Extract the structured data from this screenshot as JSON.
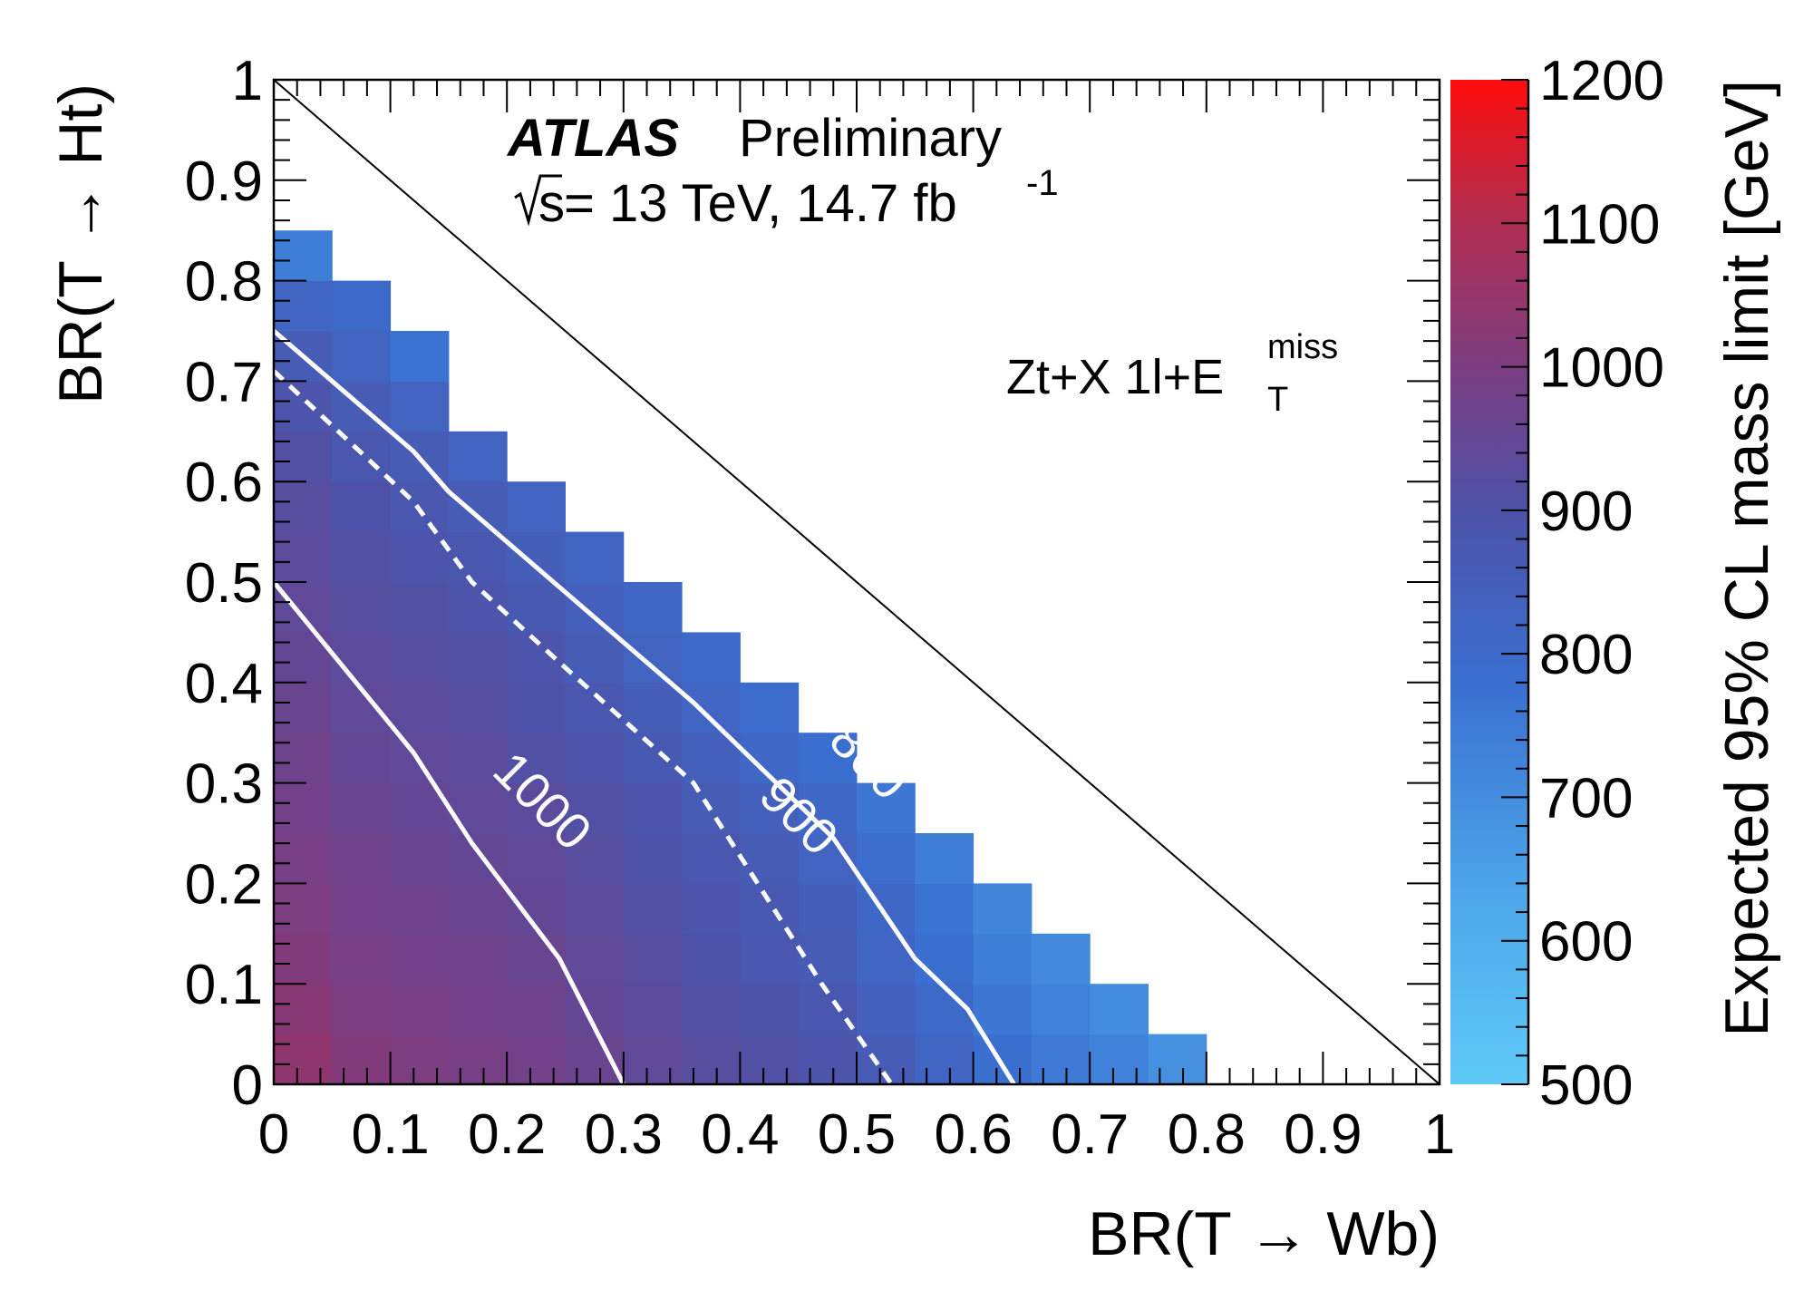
{
  "chart_data": {
    "type": "heatmap",
    "title": "",
    "experiment": "ATLAS",
    "status": "Preliminary",
    "energy_prefix": "s",
    "energy_text": " = 13 TeV, 14.7 fb",
    "energy_sup": "-1",
    "channel_text": "Zt+X 1l+E",
    "channel_sup": "miss",
    "channel_sub": "T",
    "xlabel": "BR(T → Wb)",
    "ylabel": "BR(T → Ht)",
    "zlabel": "Expected 95% CL mass limit [GeV]",
    "xlim": [
      0,
      1
    ],
    "ylim": [
      0,
      1
    ],
    "zlim": [
      500,
      1200
    ],
    "x_ticks": [
      "0",
      "0.1",
      "0.2",
      "0.3",
      "0.4",
      "0.5",
      "0.6",
      "0.7",
      "0.8",
      "0.9",
      "1"
    ],
    "y_ticks": [
      "0",
      "0.1",
      "0.2",
      "0.3",
      "0.4",
      "0.5",
      "0.6",
      "0.7",
      "0.8",
      "0.9",
      "1"
    ],
    "z_ticks": [
      "500",
      "600",
      "700",
      "800",
      "900",
      "1000",
      "1100",
      "1200"
    ],
    "bin_width": 0.05,
    "x_bin_starts": [
      0,
      0.05,
      0.1,
      0.15,
      0.2,
      0.25,
      0.3,
      0.35,
      0.4,
      0.45,
      0.5,
      0.55,
      0.6,
      0.65,
      0.7,
      0.75
    ],
    "grid_note": "rows indexed by BR(T->Ht) bin start, columns by BR(T->Wb) bin start",
    "rows": [
      {
        "y": 0.0,
        "values": [
          1040,
          1010,
          1000,
          990,
          980,
          960,
          940,
          920,
          910,
          890,
          860,
          820,
          780,
          750,
          730,
          690
        ]
      },
      {
        "y": 0.05,
        "values": [
          1025,
          1000,
          990,
          980,
          970,
          950,
          930,
          910,
          900,
          880,
          840,
          800,
          760,
          730,
          700
        ]
      },
      {
        "y": 0.1,
        "values": [
          1010,
          990,
          980,
          970,
          960,
          940,
          920,
          900,
          880,
          860,
          820,
          780,
          740,
          710
        ]
      },
      {
        "y": 0.15,
        "values": [
          1000,
          980,
          970,
          960,
          950,
          930,
          910,
          890,
          870,
          850,
          810,
          770,
          720
        ]
      },
      {
        "y": 0.2,
        "values": [
          990,
          970,
          960,
          950,
          940,
          920,
          900,
          880,
          860,
          830,
          790,
          740
        ]
      },
      {
        "y": 0.25,
        "values": [
          980,
          960,
          950,
          940,
          930,
          910,
          890,
          860,
          840,
          810,
          760
        ]
      },
      {
        "y": 0.3,
        "values": [
          970,
          950,
          940,
          930,
          910,
          890,
          870,
          840,
          810,
          780
        ]
      },
      {
        "y": 0.35,
        "values": [
          960,
          940,
          930,
          920,
          900,
          880,
          850,
          820,
          790
        ]
      },
      {
        "y": 0.4,
        "values": [
          950,
          930,
          920,
          910,
          890,
          860,
          830,
          800
        ]
      },
      {
        "y": 0.45,
        "values": [
          940,
          920,
          910,
          890,
          870,
          840,
          810
        ]
      },
      {
        "y": 0.5,
        "values": [
          930,
          910,
          890,
          880,
          850,
          820
        ]
      },
      {
        "y": 0.55,
        "values": [
          920,
          900,
          880,
          860,
          830
        ]
      },
      {
        "y": 0.6,
        "values": [
          910,
          880,
          860,
          830
        ]
      },
      {
        "y": 0.65,
        "values": [
          890,
          860,
          830
        ]
      },
      {
        "y": 0.7,
        "values": [
          860,
          830,
          770
        ]
      },
      {
        "y": 0.75,
        "values": [
          820,
          800
        ]
      },
      {
        "y": 0.8,
        "values": [
          740
        ]
      }
    ],
    "contours": [
      {
        "level": "1000",
        "style": "solid",
        "points": [
          [
            0,
            0.5
          ],
          [
            0.12,
            0.33
          ],
          [
            0.17,
            0.24
          ],
          [
            0.245,
            0.125
          ],
          [
            0.3,
            0
          ]
        ]
      },
      {
        "level": "900",
        "style": "dashed",
        "points": [
          [
            0,
            0.71
          ],
          [
            0.12,
            0.58
          ],
          [
            0.17,
            0.5
          ],
          [
            0.245,
            0.42
          ],
          [
            0.36,
            0.3
          ],
          [
            0.47,
            0.1
          ],
          [
            0.53,
            0
          ]
        ]
      },
      {
        "level": "800",
        "style": "solid",
        "points": [
          [
            0,
            0.75
          ],
          [
            0.12,
            0.63
          ],
          [
            0.15,
            0.59
          ],
          [
            0.24,
            0.5
          ],
          [
            0.36,
            0.38
          ],
          [
            0.48,
            0.245
          ],
          [
            0.55,
            0.125
          ],
          [
            0.595,
            0.075
          ],
          [
            0.635,
            0
          ]
        ]
      }
    ],
    "contour_labels": [
      {
        "text": "1000",
        "x": 0.22,
        "y": 0.27,
        "angle": 45
      },
      {
        "text": "900",
        "x": 0.44,
        "y": 0.255,
        "angle": 45
      },
      {
        "text": "800",
        "x": 0.5,
        "y": 0.31,
        "angle": 45
      }
    ],
    "diagonal": [
      [
        0,
        1
      ],
      [
        1,
        0
      ]
    ]
  }
}
